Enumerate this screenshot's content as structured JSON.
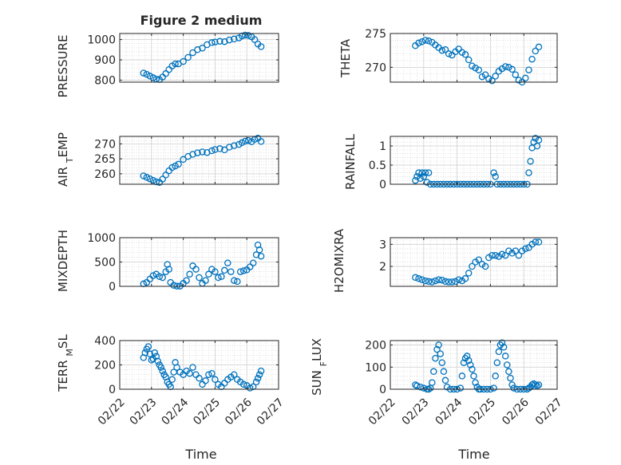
{
  "chart_data": {
    "type": "scatter",
    "title": "Figure 2 medium",
    "xlabel": "Time",
    "date_ticks": [
      "02/22",
      "02/23",
      "02/24",
      "02/25",
      "02/26",
      "02/27"
    ],
    "marker_color": "#0072BD",
    "grid": true,
    "subplots": [
      {
        "name": "pressure",
        "ylabel": "PRESSURE",
        "ylim": [
          790,
          1030
        ],
        "yticks": [
          800,
          900,
          1000
        ],
        "series": [
          {
            "name": "PRESSURE",
            "x": [
              0.75,
              0.85,
              0.95,
              1.05,
              1.15,
              1.25,
              1.35,
              1.45,
              1.55,
              1.65,
              1.75,
              1.85,
              2.0,
              2.15,
              2.3,
              2.45,
              2.6,
              2.75,
              2.9,
              3.0,
              3.15,
              3.3,
              3.45,
              3.6,
              3.75,
              3.85,
              3.95,
              4.05,
              4.15,
              4.25,
              4.35,
              4.45
            ],
            "y": [
              835,
              828,
              820,
              812,
              805,
              803,
              815,
              832,
              852,
              870,
              880,
              880,
              892,
              912,
              935,
              950,
              958,
              975,
              985,
              988,
              992,
              990,
              998,
              1003,
              1008,
              1018,
              1022,
              1020,
              1014,
              1000,
              978,
              965
            ]
          }
        ]
      },
      {
        "name": "theta",
        "ylabel": "THETA",
        "ylim": [
          267.8,
          275
        ],
        "yticks": [
          270,
          275
        ],
        "series": [
          {
            "name": "THETA",
            "x": [
              0.75,
              0.85,
              0.95,
              1.05,
              1.15,
              1.25,
              1.35,
              1.45,
              1.55,
              1.65,
              1.75,
              1.85,
              1.95,
              2.05,
              2.15,
              2.25,
              2.35,
              2.45,
              2.55,
              2.65,
              2.75,
              2.85,
              2.95,
              3.05,
              3.15,
              3.25,
              3.35,
              3.45,
              3.55,
              3.65,
              3.75,
              3.85,
              3.95,
              4.05,
              4.15,
              4.25,
              4.35,
              4.45
            ],
            "y": [
              273.2,
              273.6,
              273.8,
              274.0,
              273.9,
              273.7,
              273.3,
              272.9,
              272.5,
              272.6,
              272.0,
              271.8,
              272.3,
              272.7,
              272.2,
              271.9,
              271.1,
              270.2,
              269.9,
              269.6,
              268.6,
              268.9,
              268.3,
              268.0,
              268.7,
              269.4,
              269.8,
              270.1,
              270.0,
              269.7,
              268.9,
              268.1,
              267.8,
              268.4,
              269.6,
              271.2,
              272.4,
              273.0
            ]
          }
        ]
      },
      {
        "name": "air-temp",
        "ylabel": "AIR_TEMP",
        "ylim": [
          256.5,
          272.5
        ],
        "yticks": [
          260,
          265,
          270
        ],
        "series": [
          {
            "name": "AIR_TEMP",
            "x": [
              0.75,
              0.85,
              0.95,
              1.05,
              1.15,
              1.25,
              1.35,
              1.45,
              1.55,
              1.65,
              1.75,
              1.85,
              2.0,
              2.15,
              2.3,
              2.45,
              2.6,
              2.75,
              2.9,
              3.0,
              3.15,
              3.3,
              3.45,
              3.6,
              3.75,
              3.85,
              3.95,
              4.05,
              4.15,
              4.25,
              4.35,
              4.45
            ],
            "y": [
              259.3,
              258.8,
              258.3,
              257.8,
              257.3,
              257.1,
              258.2,
              259.6,
              261.0,
              262.1,
              262.6,
              263.2,
              264.8,
              265.8,
              266.5,
              267.0,
              267.3,
              267.1,
              267.7,
              268.1,
              268.4,
              268.0,
              268.9,
              269.4,
              269.8,
              270.4,
              270.9,
              271.1,
              270.7,
              271.5,
              271.9,
              270.8
            ]
          }
        ]
      },
      {
        "name": "rainfall",
        "ylabel": "RAINFALL",
        "ylim": [
          0,
          1.25
        ],
        "yticks": [
          0,
          0.5,
          1
        ],
        "series": [
          {
            "name": "RAINFALL",
            "x": [
              0.75,
              0.8,
              0.85,
              0.9,
              0.95,
              1.0,
              1.05,
              1.1,
              1.15,
              1.2,
              1.3,
              1.4,
              1.5,
              1.6,
              1.7,
              1.8,
              1.9,
              2.0,
              2.1,
              2.2,
              2.3,
              2.4,
              2.5,
              2.6,
              2.7,
              2.8,
              2.9,
              3.0,
              3.1,
              3.15,
              3.2,
              3.3,
              3.4,
              3.5,
              3.6,
              3.7,
              3.8,
              3.9,
              4.0,
              4.1,
              4.15,
              4.2,
              4.25,
              4.3,
              4.35,
              4.4,
              4.45
            ],
            "y": [
              0.1,
              0.2,
              0.3,
              0.15,
              0.3,
              0.2,
              0.3,
              0.05,
              0.3,
              0,
              0,
              0,
              0,
              0,
              0,
              0,
              0,
              0,
              0,
              0,
              0,
              0,
              0,
              0,
              0,
              0,
              0,
              0,
              0.3,
              0.2,
              0,
              0,
              0,
              0,
              0,
              0,
              0,
              0,
              0,
              0,
              0.3,
              0.6,
              0.95,
              1.1,
              1.2,
              1.0,
              1.15
            ]
          }
        ]
      },
      {
        "name": "mixdepth",
        "ylabel": "MIXDEPTH",
        "ylim": [
          0,
          1000
        ],
        "yticks": [
          0,
          500,
          1000
        ],
        "series": [
          {
            "name": "MIXDEPTH",
            "x": [
              0.75,
              0.85,
              0.95,
              1.05,
              1.15,
              1.25,
              1.35,
              1.45,
              1.5,
              1.55,
              1.6,
              1.7,
              1.8,
              1.9,
              2.0,
              2.1,
              2.2,
              2.3,
              2.4,
              2.5,
              2.6,
              2.7,
              2.8,
              2.9,
              3.0,
              3.1,
              3.2,
              3.3,
              3.4,
              3.5,
              3.6,
              3.7,
              3.8,
              3.9,
              4.0,
              4.1,
              4.2,
              4.3,
              4.35,
              4.4,
              4.45
            ],
            "y": [
              50,
              80,
              150,
              220,
              250,
              200,
              180,
              300,
              450,
              350,
              80,
              20,
              5,
              5,
              60,
              120,
              250,
              420,
              350,
              180,
              60,
              120,
              250,
              350,
              300,
              180,
              200,
              330,
              480,
              300,
              120,
              100,
              300,
              320,
              340,
              400,
              480,
              650,
              850,
              750,
              620
            ]
          }
        ]
      },
      {
        "name": "h2omixra",
        "ylabel": "H2OMIXRA",
        "ylim": [
          1.1,
          3.3
        ],
        "yticks": [
          2,
          3
        ],
        "series": [
          {
            "name": "H2OMIXRA",
            "x": [
              0.75,
              0.85,
              0.95,
              1.05,
              1.15,
              1.25,
              1.35,
              1.45,
              1.55,
              1.65,
              1.75,
              1.85,
              1.95,
              2.05,
              2.15,
              2.25,
              2.35,
              2.45,
              2.55,
              2.65,
              2.75,
              2.85,
              2.95,
              3.05,
              3.15,
              3.25,
              3.35,
              3.45,
              3.55,
              3.65,
              3.75,
              3.85,
              3.95,
              4.05,
              4.15,
              4.25,
              4.35,
              4.45
            ],
            "y": [
              1.5,
              1.45,
              1.4,
              1.35,
              1.32,
              1.3,
              1.35,
              1.4,
              1.38,
              1.32,
              1.3,
              1.3,
              1.32,
              1.4,
              1.35,
              1.45,
              1.7,
              2.0,
              2.2,
              2.3,
              2.1,
              2.0,
              2.4,
              2.5,
              2.5,
              2.45,
              2.55,
              2.5,
              2.7,
              2.6,
              2.7,
              2.5,
              2.7,
              2.8,
              2.85,
              3.0,
              3.1,
              3.1
            ]
          }
        ]
      },
      {
        "name": "terr-msl",
        "ylabel": "TERR_MSL",
        "ylim": [
          0,
          400
        ],
        "yticks": [
          0,
          200,
          400
        ],
        "series": [
          {
            "name": "TERR_MSL",
            "x": [
              0.75,
              0.8,
              0.85,
              0.9,
              0.95,
              1.0,
              1.05,
              1.1,
              1.15,
              1.2,
              1.25,
              1.3,
              1.35,
              1.4,
              1.45,
              1.5,
              1.55,
              1.6,
              1.65,
              1.7,
              1.75,
              1.8,
              1.9,
              2.0,
              2.1,
              2.2,
              2.3,
              2.4,
              2.5,
              2.6,
              2.7,
              2.8,
              2.9,
              3.0,
              3.1,
              3.2,
              3.3,
              3.4,
              3.5,
              3.6,
              3.7,
              3.8,
              3.9,
              4.0,
              4.1,
              4.2,
              4.3,
              4.35,
              4.4,
              4.45
            ],
            "y": [
              260,
              300,
              330,
              350,
              290,
              240,
              250,
              300,
              270,
              230,
              200,
              180,
              150,
              120,
              100,
              60,
              40,
              20,
              80,
              140,
              220,
              180,
              140,
              120,
              150,
              130,
              180,
              120,
              90,
              40,
              70,
              120,
              130,
              80,
              40,
              20,
              50,
              80,
              100,
              120,
              80,
              60,
              40,
              30,
              10,
              20,
              60,
              90,
              120,
              150
            ]
          }
        ]
      },
      {
        "name": "sun-flux",
        "ylabel": "SUN_FLUX",
        "ylim": [
          0,
          220
        ],
        "yticks": [
          0,
          100,
          200
        ],
        "series": [
          {
            "name": "SUN_FLUX",
            "x": [
              0.75,
              0.8,
              0.9,
              1.0,
              1.1,
              1.15,
              1.2,
              1.25,
              1.3,
              1.35,
              1.4,
              1.45,
              1.5,
              1.55,
              1.6,
              1.65,
              1.7,
              1.8,
              1.9,
              2.0,
              2.1,
              2.15,
              2.2,
              2.25,
              2.3,
              2.35,
              2.4,
              2.45,
              2.5,
              2.55,
              2.6,
              2.65,
              2.7,
              2.8,
              2.9,
              3.0,
              3.1,
              3.15,
              3.2,
              3.25,
              3.3,
              3.35,
              3.4,
              3.45,
              3.5,
              3.55,
              3.6,
              3.65,
              3.7,
              3.8,
              3.9,
              4.0,
              4.1,
              4.15,
              4.2,
              4.25,
              4.3,
              4.35,
              4.4,
              4.45
            ],
            "y": [
              20,
              15,
              10,
              5,
              0,
              0,
              5,
              30,
              80,
              140,
              180,
              200,
              160,
              120,
              80,
              40,
              10,
              0,
              0,
              0,
              5,
              60,
              120,
              140,
              150,
              130,
              110,
              90,
              60,
              30,
              10,
              0,
              0,
              0,
              0,
              0,
              5,
              60,
              120,
              170,
              200,
              210,
              190,
              150,
              110,
              80,
              50,
              20,
              5,
              0,
              0,
              0,
              0,
              5,
              10,
              20,
              25,
              20,
              15,
              20
            ]
          }
        ]
      }
    ]
  }
}
